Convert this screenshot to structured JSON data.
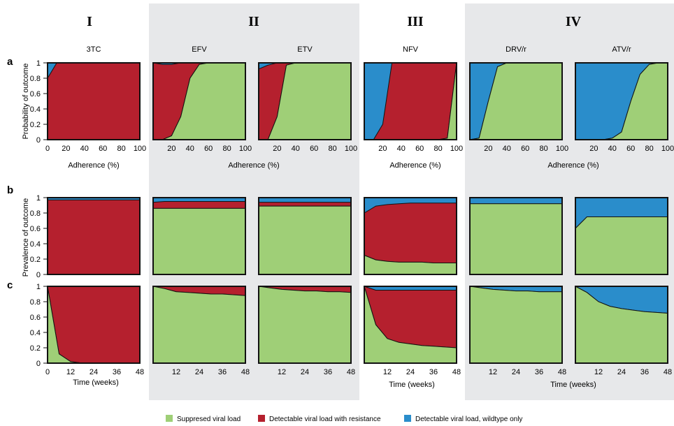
{
  "chart_data": {
    "type": "area",
    "groups": [
      "I",
      "II",
      "III",
      "IV"
    ],
    "drugs": [
      "3TC",
      "EFV",
      "ETV",
      "NFV",
      "DRV/r",
      "ATV/r"
    ],
    "row_labels": [
      "a",
      "b",
      "c"
    ],
    "ylabel_a": "Probability of outcome",
    "ylabel_bc": "Prevalence of outcome",
    "xlabel_a": "Adherence (%)",
    "xlabel_c": "Time (weeks)",
    "legend": [
      {
        "key": "suppressed",
        "label": "Suppresed viral load",
        "color": "#9fcf77"
      },
      {
        "key": "resistance",
        "label": "Detectable viral load with resistance",
        "color": "#b5202e"
      },
      {
        "key": "wildtype",
        "label": "Detectable viral load, wildtype only",
        "color": "#2a8dcb"
      }
    ],
    "y_ticks": [
      "0",
      "0.2",
      "0.4",
      "0.6",
      "0.8",
      "1"
    ],
    "x_ticks_a_first": [
      "0",
      "20",
      "40",
      "60",
      "80",
      "100"
    ],
    "x_ticks_a": [
      "20",
      "40",
      "60",
      "80",
      "100"
    ],
    "x_ticks_c_first": [
      "0",
      "12",
      "24",
      "36",
      "48"
    ],
    "x_ticks_c": [
      "12",
      "24",
      "36",
      "48"
    ],
    "adherence_x": [
      0,
      10,
      20,
      30,
      40,
      50,
      60,
      70,
      80,
      90,
      100
    ],
    "time_x": [
      0,
      6,
      12,
      18,
      24,
      30,
      36,
      42,
      48
    ],
    "panels_a": [
      {
        "drug": "3TC",
        "suppressed": [
          0,
          0,
          0,
          0,
          0,
          0,
          0,
          0,
          0,
          0,
          0
        ],
        "resistance": [
          0.8,
          1,
          1,
          1,
          1,
          1,
          1,
          1,
          1,
          1,
          1
        ]
      },
      {
        "drug": "EFV",
        "suppressed": [
          0,
          0,
          0.05,
          0.3,
          0.8,
          0.98,
          1,
          1,
          1,
          1,
          1
        ],
        "resistance": [
          1,
          0.98,
          0.93,
          0.7,
          0.2,
          0.02,
          0,
          0,
          0,
          0,
          0
        ]
      },
      {
        "drug": "ETV",
        "suppressed": [
          0,
          0,
          0.3,
          0.97,
          1,
          1,
          1,
          1,
          1,
          1,
          1
        ],
        "resistance": [
          0.92,
          0.97,
          0.7,
          0.03,
          0,
          0,
          0,
          0,
          0,
          0,
          0
        ]
      },
      {
        "drug": "NFV",
        "suppressed": [
          0,
          0,
          0,
          0,
          0,
          0,
          0,
          0,
          0,
          0.02,
          1
        ],
        "resistance": [
          0,
          0,
          0.2,
          1,
          1,
          1,
          1,
          1,
          1,
          0.98,
          0
        ]
      },
      {
        "drug": "DRV/r",
        "suppressed": [
          0,
          0.02,
          0.5,
          0.95,
          1,
          1,
          1,
          1,
          1,
          1,
          1
        ],
        "resistance": [
          0,
          0,
          0,
          0,
          0,
          0,
          0,
          0,
          0,
          0,
          0
        ]
      },
      {
        "drug": "ATV/r",
        "suppressed": [
          0,
          0,
          0,
          0,
          0.02,
          0.1,
          0.5,
          0.85,
          0.98,
          1,
          1
        ],
        "resistance": [
          0,
          0,
          0,
          0,
          0,
          0,
          0,
          0,
          0,
          0,
          0
        ]
      }
    ],
    "panels_b": [
      {
        "drug": "3TC",
        "suppressed": [
          0,
          0,
          0,
          0,
          0,
          0,
          0,
          0,
          0
        ],
        "resistance": [
          0.97,
          0.97,
          0.97,
          0.97,
          0.97,
          0.97,
          0.97,
          0.97,
          0.97
        ]
      },
      {
        "drug": "EFV",
        "suppressed": [
          0.86,
          0.86,
          0.86,
          0.86,
          0.86,
          0.86,
          0.86,
          0.86,
          0.86
        ],
        "resistance": [
          0.08,
          0.09,
          0.09,
          0.09,
          0.09,
          0.09,
          0.09,
          0.09,
          0.09
        ]
      },
      {
        "drug": "ETV",
        "suppressed": [
          0.89,
          0.89,
          0.89,
          0.89,
          0.89,
          0.89,
          0.89,
          0.89,
          0.89
        ],
        "resistance": [
          0.05,
          0.05,
          0.05,
          0.05,
          0.05,
          0.05,
          0.05,
          0.05,
          0.05
        ]
      },
      {
        "drug": "NFV",
        "suppressed": [
          0.25,
          0.19,
          0.17,
          0.16,
          0.16,
          0.16,
          0.15,
          0.15,
          0.15
        ],
        "resistance": [
          0.55,
          0.7,
          0.74,
          0.76,
          0.77,
          0.77,
          0.78,
          0.78,
          0.78
        ]
      },
      {
        "drug": "DRV/r",
        "suppressed": [
          0.92,
          0.92,
          0.92,
          0.92,
          0.92,
          0.92,
          0.92,
          0.92,
          0.92
        ],
        "resistance": [
          0,
          0,
          0,
          0,
          0,
          0,
          0,
          0,
          0
        ]
      },
      {
        "drug": "ATV/r",
        "suppressed": [
          0.6,
          0.75,
          0.75,
          0.75,
          0.75,
          0.75,
          0.75,
          0.75,
          0.75
        ],
        "resistance": [
          0,
          0,
          0,
          0,
          0,
          0,
          0,
          0,
          0
        ]
      }
    ],
    "panels_c": [
      {
        "drug": "3TC",
        "suppressed": [
          1,
          0.12,
          0.02,
          0,
          0,
          0,
          0,
          0,
          0
        ],
        "resistance": [
          0,
          0.88,
          0.98,
          1,
          1,
          1,
          1,
          1,
          1
        ]
      },
      {
        "drug": "EFV",
        "suppressed": [
          1,
          0.97,
          0.93,
          0.92,
          0.91,
          0.9,
          0.9,
          0.89,
          0.88
        ],
        "resistance": [
          0,
          0.03,
          0.07,
          0.08,
          0.09,
          0.1,
          0.1,
          0.11,
          0.12
        ]
      },
      {
        "drug": "ETV",
        "suppressed": [
          1,
          0.98,
          0.96,
          0.95,
          0.94,
          0.94,
          0.93,
          0.93,
          0.92
        ],
        "resistance": [
          0,
          0.02,
          0.04,
          0.05,
          0.06,
          0.06,
          0.07,
          0.07,
          0.08
        ]
      },
      {
        "drug": "NFV",
        "suppressed": [
          1,
          0.5,
          0.32,
          0.27,
          0.25,
          0.23,
          0.22,
          0.21,
          0.2
        ],
        "resistance": [
          0,
          0.45,
          0.63,
          0.68,
          0.7,
          0.72,
          0.73,
          0.74,
          0.75
        ]
      },
      {
        "drug": "DRV/r",
        "suppressed": [
          1,
          0.98,
          0.96,
          0.95,
          0.94,
          0.94,
          0.93,
          0.93,
          0.93
        ],
        "resistance": [
          0,
          0,
          0,
          0,
          0,
          0,
          0,
          0,
          0
        ]
      },
      {
        "drug": "ATV/r",
        "suppressed": [
          1,
          0.92,
          0.8,
          0.74,
          0.71,
          0.69,
          0.67,
          0.66,
          0.65
        ],
        "resistance": [
          0,
          0,
          0,
          0,
          0,
          0,
          0,
          0,
          0
        ]
      }
    ],
    "ylim": [
      0,
      1
    ],
    "xlim_a": [
      0,
      100
    ],
    "xlim_c": [
      0,
      48
    ]
  }
}
